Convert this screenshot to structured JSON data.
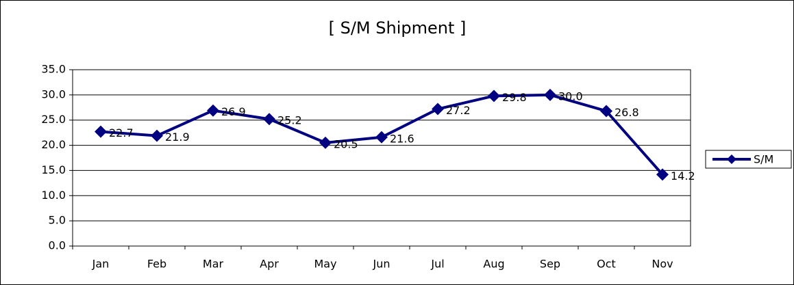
{
  "chart_data": {
    "type": "line",
    "title": "[ S/M Shipment ]",
    "categories": [
      "Jan",
      "Feb",
      "Mar",
      "Apr",
      "May",
      "Jun",
      "Jul",
      "Aug",
      "Sep",
      "Oct",
      "Nov"
    ],
    "series": [
      {
        "name": "S/M",
        "color": "#000080",
        "values": [
          22.7,
          21.9,
          26.9,
          25.2,
          20.5,
          21.6,
          27.2,
          29.8,
          30.0,
          26.8,
          14.2
        ],
        "value_labels": [
          "22.7",
          "21.9",
          "26.9",
          "25.2",
          "20.5",
          "21.6",
          "27.2",
          "29.8",
          "30.0",
          "26.8",
          "14.2"
        ]
      }
    ],
    "ylim": [
      0,
      35
    ],
    "yticks": [
      {
        "value": 0,
        "label": "0.0"
      },
      {
        "value": 5,
        "label": "5.0"
      },
      {
        "value": 10,
        "label": "10.0"
      },
      {
        "value": 15,
        "label": "15.0"
      },
      {
        "value": 20,
        "label": "20.0"
      },
      {
        "value": 25,
        "label": "25.0"
      },
      {
        "value": 30,
        "label": "30.0"
      },
      {
        "value": 35,
        "label": "35.0"
      }
    ],
    "grid": true,
    "legend": "right"
  }
}
